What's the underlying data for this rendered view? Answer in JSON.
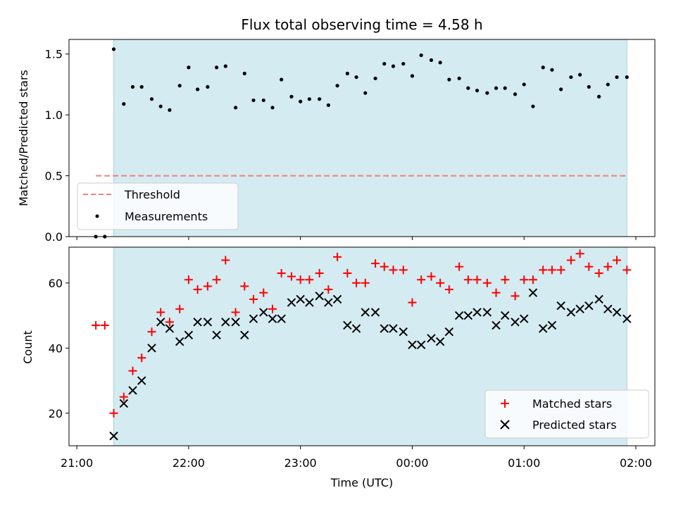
{
  "chart_data": {
    "type": "scatter",
    "title": "Flux total observing time = 4.58 h",
    "xlabel": "Time (UTC)",
    "x_unit": "hours UTC (values past 24 wrap to next day)",
    "x_ticks": [
      {
        "value": 21,
        "label": "21:00"
      },
      {
        "value": 22,
        "label": "22:00"
      },
      {
        "value": 23,
        "label": "23:00"
      },
      {
        "value": 24,
        "label": "00:00"
      },
      {
        "value": 25,
        "label": "01:00"
      },
      {
        "value": 26,
        "label": "02:00"
      }
    ],
    "xlim": [
      20.93,
      26.17
    ],
    "observing_window": {
      "start": 21.33,
      "end": 25.92,
      "color": "#d4ebf2"
    },
    "top": {
      "ylabel": "Matched/Predicted stars",
      "ylim": [
        0,
        1.62
      ],
      "y_ticks": [
        0,
        0.5,
        1.0,
        1.5
      ],
      "y_tick_labels": [
        "0.0",
        "0.5",
        "1.0",
        "1.5"
      ],
      "legend_position": "lower-left",
      "threshold": {
        "name": "Threshold",
        "value": 0.5,
        "x_start": 21.17,
        "x_end": 25.92,
        "color": "#f08080"
      },
      "measurements": {
        "name": "Measurements",
        "color": "#000000",
        "x": [
          21.17,
          21.25,
          21.33,
          21.42,
          21.5,
          21.58,
          21.67,
          21.75,
          21.83,
          21.92,
          22.0,
          22.08,
          22.17,
          22.25,
          22.33,
          22.42,
          22.5,
          22.58,
          22.67,
          22.75,
          22.83,
          22.92,
          23.0,
          23.08,
          23.17,
          23.25,
          23.33,
          23.42,
          23.5,
          23.58,
          23.67,
          23.75,
          23.83,
          23.92,
          24.0,
          24.08,
          24.17,
          24.25,
          24.33,
          24.42,
          24.5,
          24.58,
          24.67,
          24.75,
          24.83,
          24.92,
          25.0,
          25.08,
          25.17,
          25.25,
          25.33,
          25.42,
          25.5,
          25.58,
          25.67,
          25.75,
          25.83,
          25.92
        ],
        "y": [
          0.0,
          0.0,
          1.54,
          1.09,
          1.23,
          1.23,
          1.13,
          1.07,
          1.04,
          1.24,
          1.39,
          1.21,
          1.23,
          1.39,
          1.4,
          1.06,
          1.34,
          1.12,
          1.12,
          1.06,
          1.29,
          1.15,
          1.11,
          1.13,
          1.13,
          1.08,
          1.24,
          1.34,
          1.31,
          1.18,
          1.3,
          1.42,
          1.4,
          1.42,
          1.32,
          1.49,
          1.45,
          1.43,
          1.29,
          1.3,
          1.22,
          1.2,
          1.18,
          1.22,
          1.22,
          1.17,
          1.25,
          1.07,
          1.39,
          1.37,
          1.21,
          1.31,
          1.33,
          1.23,
          1.15,
          1.25,
          1.31,
          1.31
        ]
      }
    },
    "bottom": {
      "ylabel": "Count",
      "ylim": [
        10,
        71
      ],
      "y_ticks": [
        20,
        40,
        60
      ],
      "y_tick_labels": [
        "20",
        "40",
        "60"
      ],
      "legend_position": "lower-right",
      "series": [
        {
          "name": "Matched stars",
          "marker": "+",
          "color": "#ff0000",
          "x": [
            21.17,
            21.25,
            21.33,
            21.42,
            21.5,
            21.58,
            21.67,
            21.75,
            21.83,
            21.92,
            22.0,
            22.08,
            22.17,
            22.25,
            22.33,
            22.42,
            22.5,
            22.58,
            22.67,
            22.75,
            22.83,
            22.92,
            23.0,
            23.08,
            23.17,
            23.25,
            23.33,
            23.42,
            23.5,
            23.58,
            23.67,
            23.75,
            23.83,
            23.92,
            24.0,
            24.08,
            24.17,
            24.25,
            24.33,
            24.42,
            24.5,
            24.58,
            24.67,
            24.75,
            24.83,
            24.92,
            25.0,
            25.08,
            25.17,
            25.25,
            25.33,
            25.42,
            25.5,
            25.58,
            25.67,
            25.75,
            25.83,
            25.92
          ],
          "y": [
            47,
            47,
            20,
            25,
            33,
            37,
            45,
            51,
            48,
            52,
            61,
            58,
            59,
            61,
            67,
            51,
            59,
            55,
            57,
            52,
            63,
            62,
            61,
            61,
            63,
            58,
            68,
            63,
            60,
            60,
            66,
            65,
            64,
            64,
            54,
            61,
            62,
            60,
            58,
            65,
            61,
            61,
            60,
            57,
            61,
            56,
            61,
            61,
            64,
            64,
            64,
            67,
            69,
            65,
            63,
            65,
            67,
            64
          ]
        },
        {
          "name": "Predicted stars",
          "marker": "x",
          "color": "#000000",
          "x": [
            21.33,
            21.42,
            21.5,
            21.58,
            21.67,
            21.75,
            21.83,
            21.92,
            22.0,
            22.08,
            22.17,
            22.25,
            22.33,
            22.42,
            22.5,
            22.58,
            22.67,
            22.75,
            22.83,
            22.92,
            23.0,
            23.08,
            23.17,
            23.25,
            23.33,
            23.42,
            23.5,
            23.58,
            23.67,
            23.75,
            23.83,
            23.92,
            24.0,
            24.08,
            24.17,
            24.25,
            24.33,
            24.42,
            24.5,
            24.58,
            24.67,
            24.75,
            24.83,
            24.92,
            25.0,
            25.08,
            25.17,
            25.25,
            25.33,
            25.42,
            25.5,
            25.58,
            25.67,
            25.75,
            25.83,
            25.92
          ],
          "y": [
            13,
            23,
            27,
            30,
            40,
            48,
            46,
            42,
            44,
            48,
            48,
            44,
            48,
            48,
            44,
            49,
            51,
            49,
            49,
            54,
            55,
            54,
            56,
            54,
            55,
            47,
            46,
            51,
            51,
            46,
            46,
            45,
            41,
            41,
            43,
            42,
            45,
            50,
            50,
            51,
            51,
            47,
            50,
            48,
            49,
            57,
            46,
            47,
            53,
            51,
            52,
            53,
            55,
            52,
            51,
            49
          ]
        }
      ]
    }
  }
}
